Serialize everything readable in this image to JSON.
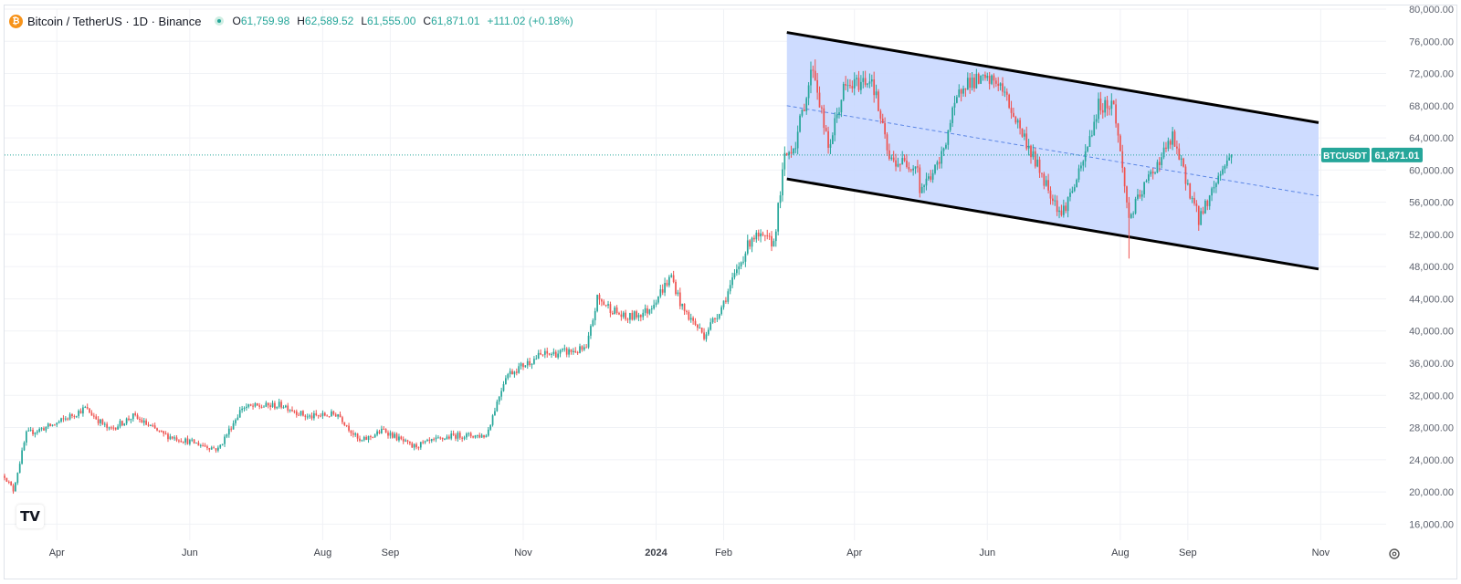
{
  "legend": {
    "symbol_icon": "bitcoin-coin-icon",
    "symbol_glyph": "₿",
    "title": "Bitcoin / TetherUS · 1D · Binance",
    "open_key": "O",
    "open": "61,759.98",
    "high_key": "H",
    "high": "62,589.52",
    "low_key": "L",
    "low": "61,555.00",
    "close_key": "C",
    "close": "61,871.01",
    "change": "+111.02 (+0.18%)"
  },
  "price_tag": {
    "symbol": "BTCUSDT",
    "value": "61,871.01",
    "price": 61871.01
  },
  "logo_text": "TV",
  "colors": {
    "up": "#26a69a",
    "down": "#ef5350",
    "channel_fill": "#c9d8ff",
    "channel_line": "#000000",
    "midline": "#5b86e5",
    "tag_bg": "#26a69a"
  },
  "chart_data": {
    "type": "candlestick",
    "x_axis": "date",
    "ylim": [
      14000,
      80000
    ],
    "grid": true,
    "y_ticks": [
      16000,
      20000,
      24000,
      28000,
      32000,
      36000,
      40000,
      44000,
      48000,
      52000,
      56000,
      60000,
      64000,
      68000,
      72000,
      76000,
      80000
    ],
    "y_tick_labels": [
      "16,000.00",
      "20,000.00",
      "24,000.00",
      "28,000.00",
      "32,000.00",
      "36,000.00",
      "40,000.00",
      "44,000.00",
      "48,000.00",
      "52,000.00",
      "56,000.00",
      "60,000.00",
      "64,000.00",
      "68,000.00",
      "72,000.00",
      "76,000.00",
      "80,000.00"
    ],
    "x_ticks": [
      {
        "label": "Apr",
        "date": "2023-04-01"
      },
      {
        "label": "Jun",
        "date": "2023-06-01"
      },
      {
        "label": "Aug",
        "date": "2023-08-01"
      },
      {
        "label": "Sep",
        "date": "2023-09-01"
      },
      {
        "label": "Nov",
        "date": "2023-11-01"
      },
      {
        "label": "2024",
        "date": "2024-01-01",
        "bold": true
      },
      {
        "label": "Feb",
        "date": "2024-02-01"
      },
      {
        "label": "Apr",
        "date": "2024-04-01"
      },
      {
        "label": "Jun",
        "date": "2024-06-01"
      },
      {
        "label": "Aug",
        "date": "2024-08-01"
      },
      {
        "label": "Sep",
        "date": "2024-09-01"
      },
      {
        "label": "Nov",
        "date": "2024-11-01"
      }
    ],
    "x_range": [
      "2023-03-08",
      "2024-12-01"
    ],
    "price_anchors": [
      [
        "2023-03-08",
        22000
      ],
      [
        "2023-03-12",
        20200
      ],
      [
        "2023-03-18",
        27200
      ],
      [
        "2023-03-31",
        28400
      ],
      [
        "2023-04-14",
        30400
      ],
      [
        "2023-04-25",
        27700
      ],
      [
        "2023-05-06",
        29400
      ],
      [
        "2023-05-20",
        27100
      ],
      [
        "2023-06-14",
        25300
      ],
      [
        "2023-06-25",
        30500
      ],
      [
        "2023-07-14",
        30800
      ],
      [
        "2023-07-25",
        29300
      ],
      [
        "2023-08-08",
        29700
      ],
      [
        "2023-08-18",
        26200
      ],
      [
        "2023-08-29",
        27700
      ],
      [
        "2023-09-11",
        25600
      ],
      [
        "2023-09-30",
        27000
      ],
      [
        "2023-10-15",
        27000
      ],
      [
        "2023-10-24",
        34500
      ],
      [
        "2023-11-09",
        37000
      ],
      [
        "2023-11-30",
        37700
      ],
      [
        "2023-12-05",
        44000
      ],
      [
        "2023-12-18",
        41500
      ],
      [
        "2023-12-28",
        42500
      ],
      [
        "2024-01-08",
        46800
      ],
      [
        "2024-01-13",
        42800
      ],
      [
        "2024-01-23",
        39500
      ],
      [
        "2024-01-31",
        43000
      ],
      [
        "2024-02-14",
        51800
      ],
      [
        "2024-02-24",
        51000
      ],
      [
        "2024-02-29",
        61500
      ],
      [
        "2024-03-05",
        63500
      ],
      [
        "2024-03-13",
        73000
      ],
      [
        "2024-03-20",
        62500
      ],
      [
        "2024-03-27",
        70000
      ],
      [
        "2024-04-09",
        71500
      ],
      [
        "2024-04-17",
        61200
      ],
      [
        "2024-04-30",
        60600
      ],
      [
        "2024-05-01",
        57500
      ],
      [
        "2024-05-10",
        60800
      ],
      [
        "2024-05-15",
        66000
      ],
      [
        "2024-05-21",
        71000
      ],
      [
        "2024-06-06",
        71000
      ],
      [
        "2024-06-24",
        60500
      ],
      [
        "2024-07-05",
        54500
      ],
      [
        "2024-07-14",
        60000
      ],
      [
        "2024-07-22",
        68000
      ],
      [
        "2024-07-29",
        68200
      ],
      [
        "2024-08-05",
        54000
      ],
      [
        "2024-08-14",
        59000
      ],
      [
        "2024-08-25",
        64000
      ],
      [
        "2024-09-06",
        53900
      ],
      [
        "2024-09-17",
        60300
      ],
      [
        "2024-09-20",
        61500
      ],
      [
        "2024-09-21",
        61871
      ]
    ],
    "wick_extremes": [
      [
        "2024-08-05",
        49000
      ],
      [
        "2024-03-14",
        73750
      ]
    ],
    "annotations": {
      "parallel_channel": {
        "upper": [
          [
            "2024-03-01",
            77100
          ],
          [
            "2024-10-31",
            65900
          ]
        ],
        "lower": [
          [
            "2024-03-01",
            58900
          ],
          [
            "2024-10-31",
            47700
          ]
        ],
        "midline": true
      },
      "last_price_line": 61871.01
    }
  }
}
